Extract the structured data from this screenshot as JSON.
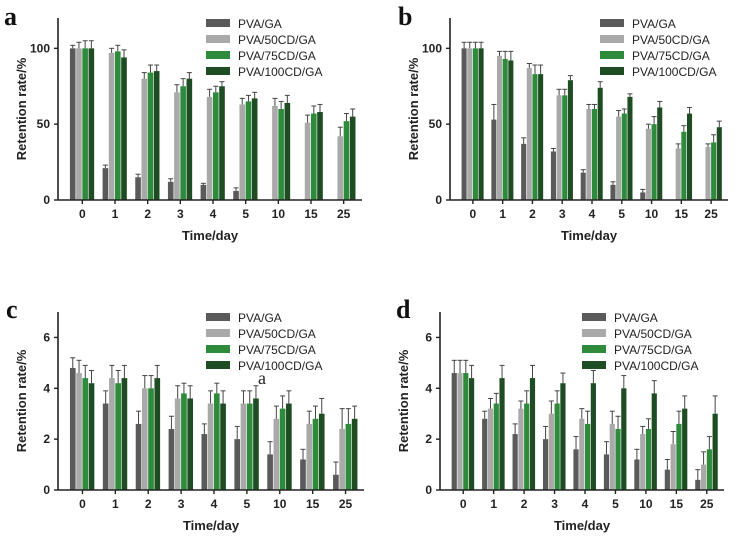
{
  "colors": {
    "PVA/GA": "#5a5a5a",
    "PVA/50CD/GA": "#a9a9a9",
    "PVA/75CD/GA": "#2e8b3c",
    "PVA/100CD/GA": "#1e4d24",
    "axis": "#222222",
    "error": "#444444"
  },
  "chart_data": [
    {
      "panel": "a",
      "type": "bar",
      "title": "",
      "xlabel": "Time/day",
      "ylabel": "Retention rate/%",
      "ylim": [
        0,
        120
      ],
      "yticks": [
        0,
        50,
        100
      ],
      "categories": [
        "0",
        "1",
        "2",
        "3",
        "4",
        "5",
        "10",
        "15",
        "25"
      ],
      "legend": [
        "PVA/GA",
        "PVA/50CD/GA",
        "PVA/75CD/GA",
        "PVA/100CD/GA"
      ],
      "series": [
        {
          "name": "PVA/GA",
          "values": [
            100,
            21,
            15,
            12,
            10,
            6,
            null,
            null,
            null
          ],
          "errors": [
            2,
            2,
            2,
            2,
            1,
            2,
            null,
            null,
            null
          ]
        },
        {
          "name": "PVA/50CD/GA",
          "values": [
            100,
            97,
            80,
            71,
            68,
            63,
            62,
            51,
            42
          ],
          "errors": [
            4,
            3,
            4,
            5,
            5,
            4,
            5,
            5,
            6
          ]
        },
        {
          "name": "PVA/75CD/GA",
          "values": [
            100,
            98,
            84,
            75,
            71,
            65,
            60,
            57,
            52
          ],
          "errors": [
            5,
            4,
            5,
            5,
            4,
            4,
            5,
            5,
            5
          ]
        },
        {
          "name": "PVA/100CD/GA",
          "values": [
            100,
            94,
            85,
            80,
            75,
            67,
            64,
            58,
            55
          ],
          "errors": [
            5,
            5,
            4,
            4,
            3,
            4,
            5,
            5,
            5
          ]
        }
      ]
    },
    {
      "panel": "b",
      "type": "bar",
      "title": "",
      "xlabel": "Time/day",
      "ylabel": "Retention rate/%",
      "ylim": [
        0,
        120
      ],
      "yticks": [
        0,
        50,
        100
      ],
      "categories": [
        "0",
        "1",
        "2",
        "3",
        "4",
        "5",
        "10",
        "15",
        "25"
      ],
      "legend": [
        "PVA/GA",
        "PVA/50CD/GA",
        "PVA/75CD/GA",
        "PVA/100CD/GA"
      ],
      "series": [
        {
          "name": "PVA/GA",
          "values": [
            100,
            53,
            37,
            32,
            18,
            10,
            5,
            null,
            null
          ],
          "errors": [
            4,
            10,
            4,
            2,
            2,
            2,
            2,
            null,
            null
          ]
        },
        {
          "name": "PVA/50CD/GA",
          "values": [
            100,
            95,
            87,
            69,
            60,
            55,
            47,
            34,
            35
          ],
          "errors": [
            4,
            3,
            3,
            4,
            3,
            4,
            3,
            3,
            2
          ]
        },
        {
          "name": "PVA/75CD/GA",
          "values": [
            100,
            93,
            83,
            69,
            60,
            57,
            50,
            45,
            38
          ],
          "errors": [
            4,
            5,
            6,
            4,
            3,
            3,
            5,
            4,
            5
          ]
        },
        {
          "name": "PVA/100CD/GA",
          "values": [
            100,
            92,
            83,
            79,
            74,
            68,
            61,
            57,
            48
          ],
          "errors": [
            4,
            6,
            6,
            3,
            4,
            2,
            4,
            4,
            4
          ]
        }
      ]
    },
    {
      "panel": "c",
      "type": "bar",
      "title": "",
      "xlabel": "Time/day",
      "ylabel": "Retention rate/%",
      "ylim": [
        0,
        7
      ],
      "yticks": [
        0,
        2,
        4,
        6
      ],
      "categories": [
        "0",
        "1",
        "2",
        "3",
        "4",
        "5",
        "10",
        "15",
        "25"
      ],
      "legend": [
        "PVA/GA",
        "PVA/50CD/GA",
        "PVA/75CD/GA",
        "PVA/100CD/GA"
      ],
      "annotation": "a",
      "series": [
        {
          "name": "PVA/GA",
          "values": [
            4.8,
            3.4,
            2.6,
            2.4,
            2.2,
            2.0,
            1.4,
            1.2,
            0.6
          ],
          "errors": [
            0.4,
            0.5,
            0.5,
            0.5,
            0.4,
            0.5,
            0.5,
            0.4,
            0.5
          ]
        },
        {
          "name": "PVA/50CD/GA",
          "values": [
            4.6,
            4.4,
            4.0,
            3.6,
            3.4,
            3.4,
            2.8,
            2.6,
            2.4
          ],
          "errors": [
            0.5,
            0.5,
            0.5,
            0.5,
            0.5,
            0.5,
            0.5,
            0.5,
            0.8
          ]
        },
        {
          "name": "PVA/75CD/GA",
          "values": [
            4.4,
            4.2,
            4.0,
            3.8,
            3.8,
            3.4,
            3.2,
            2.8,
            2.6
          ],
          "errors": [
            0.5,
            0.5,
            0.5,
            0.4,
            0.4,
            0.5,
            0.5,
            0.5,
            0.6
          ]
        },
        {
          "name": "PVA/100CD/GA",
          "values": [
            4.2,
            4.4,
            4.4,
            3.6,
            3.4,
            3.6,
            3.4,
            3.0,
            2.8
          ],
          "errors": [
            0.5,
            0.5,
            0.5,
            0.5,
            0.5,
            0.5,
            0.5,
            0.6,
            0.5
          ]
        }
      ]
    },
    {
      "panel": "d",
      "type": "bar",
      "title": "",
      "xlabel": "Time/day",
      "ylabel": "Retention rate/%",
      "ylim": [
        0,
        7
      ],
      "yticks": [
        0,
        2,
        4,
        6
      ],
      "categories": [
        "0",
        "1",
        "2",
        "3",
        "4",
        "5",
        "10",
        "15",
        "25"
      ],
      "legend": [
        "PVA/GA",
        "PVA/50CD/GA",
        "PVA/75CD/GA",
        "PVA/100CD/GA"
      ],
      "series": [
        {
          "name": "PVA/GA",
          "values": [
            4.6,
            2.8,
            2.2,
            2.0,
            1.6,
            1.4,
            1.2,
            0.8,
            0.4
          ],
          "errors": [
            0.5,
            0.3,
            0.4,
            0.5,
            0.5,
            0.5,
            0.4,
            0.4,
            0.4
          ]
        },
        {
          "name": "PVA/50CD/GA",
          "values": [
            4.6,
            3.2,
            3.2,
            3.0,
            2.8,
            2.6,
            2.2,
            1.8,
            1.0
          ],
          "errors": [
            0.5,
            0.4,
            0.3,
            0.5,
            0.4,
            0.5,
            0.3,
            0.5,
            0.5
          ]
        },
        {
          "name": "PVA/75CD/GA",
          "values": [
            4.6,
            3.4,
            3.4,
            3.4,
            2.6,
            2.4,
            2.4,
            2.6,
            1.6
          ],
          "errors": [
            0.5,
            0.4,
            0.5,
            0.5,
            0.5,
            0.5,
            0.4,
            0.5,
            0.5
          ]
        },
        {
          "name": "PVA/100CD/GA",
          "values": [
            4.4,
            4.4,
            4.4,
            4.2,
            4.2,
            4.0,
            3.8,
            3.2,
            3.0
          ],
          "errors": [
            0.5,
            0.5,
            0.5,
            0.4,
            0.5,
            0.5,
            0.5,
            0.5,
            0.7
          ]
        }
      ]
    }
  ]
}
